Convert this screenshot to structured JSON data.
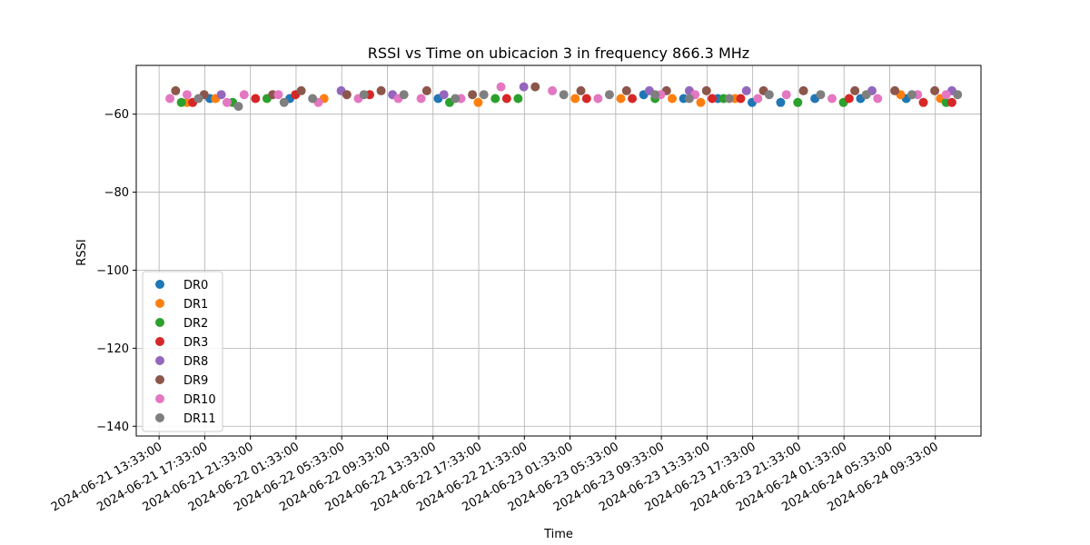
{
  "chart_data": {
    "type": "scatter",
    "title": "RSSI vs Time on ubicacion 3 in frequency 866.3 MHz",
    "xlabel": "Time",
    "ylabel": "RSSI",
    "grid": true,
    "legend_position": "lower-left",
    "x_range": [
      "2024-06-21 11:33:00",
      "2024-06-24 13:33:00"
    ],
    "ylim": [
      -142.5,
      -47.5
    ],
    "x_ticks": [
      "2024-06-21 13:33:00",
      "2024-06-21 17:33:00",
      "2024-06-21 21:33:00",
      "2024-06-22 01:33:00",
      "2024-06-22 05:33:00",
      "2024-06-22 09:33:00",
      "2024-06-22 13:33:00",
      "2024-06-22 17:33:00",
      "2024-06-22 21:33:00",
      "2024-06-23 01:33:00",
      "2024-06-23 05:33:00",
      "2024-06-23 09:33:00",
      "2024-06-23 13:33:00",
      "2024-06-23 17:33:00",
      "2024-06-23 21:33:00",
      "2024-06-24 01:33:00",
      "2024-06-24 05:33:00",
      "2024-06-24 09:33:00"
    ],
    "y_ticks": [
      -60,
      -80,
      -100,
      -120,
      -140
    ],
    "y_tick_labels": [
      "−60",
      "−80",
      "−100",
      "−120",
      "−140"
    ],
    "series": [
      {
        "name": "DR0",
        "color": "#1f77b4",
        "points": [
          [
            "2024-06-22 14:00",
            -56
          ],
          [
            "2024-06-23 11:30",
            -56
          ],
          [
            "2024-06-23 14:30",
            -56
          ],
          [
            "2024-06-23 17:30",
            -57
          ],
          [
            "2024-06-23 20:00",
            -57
          ],
          [
            "2024-06-23 23:00",
            -56
          ],
          [
            "2024-06-24 03:00",
            -56
          ],
          [
            "2024-06-24 07:00",
            -56
          ],
          [
            "2024-06-22 01:00",
            -56
          ],
          [
            "2024-06-21 18:00",
            -56
          ],
          [
            "2024-06-23 08:00",
            -55
          ]
        ]
      },
      {
        "name": "DR1",
        "color": "#ff7f0e",
        "points": [
          [
            "2024-06-21 16:00",
            -57
          ],
          [
            "2024-06-21 18:30",
            -56
          ],
          [
            "2024-06-22 04:00",
            -56
          ],
          [
            "2024-06-22 17:30",
            -57
          ],
          [
            "2024-06-23 02:00",
            -56
          ],
          [
            "2024-06-23 06:00",
            -56
          ],
          [
            "2024-06-23 10:30",
            -56
          ],
          [
            "2024-06-23 13:00",
            -57
          ],
          [
            "2024-06-23 16:00",
            -56
          ],
          [
            "2024-06-24 06:30",
            -55
          ],
          [
            "2024-06-24 10:00",
            -56
          ]
        ]
      },
      {
        "name": "DR2",
        "color": "#2ca02c",
        "points": [
          [
            "2024-06-21 15:30",
            -57
          ],
          [
            "2024-06-21 20:00",
            -57
          ],
          [
            "2024-06-22 19:00",
            -56
          ],
          [
            "2024-06-22 21:00",
            -56
          ],
          [
            "2024-06-23 09:00",
            -56
          ],
          [
            "2024-06-23 15:00",
            -56
          ],
          [
            "2024-06-23 21:30",
            -57
          ],
          [
            "2024-06-24 01:30",
            -57
          ],
          [
            "2024-06-24 10:30",
            -57
          ],
          [
            "2024-06-22 15:00",
            -57
          ],
          [
            "2024-06-21 23:00",
            -56
          ]
        ]
      },
      {
        "name": "DR3",
        "color": "#d62728",
        "points": [
          [
            "2024-06-21 16:30",
            -57
          ],
          [
            "2024-06-21 22:00",
            -56
          ],
          [
            "2024-06-22 01:30",
            -55
          ],
          [
            "2024-06-22 20:00",
            -56
          ],
          [
            "2024-06-23 03:00",
            -56
          ],
          [
            "2024-06-23 07:00",
            -56
          ],
          [
            "2024-06-23 14:00",
            -56
          ],
          [
            "2024-06-24 02:00",
            -56
          ],
          [
            "2024-06-24 08:30",
            -57
          ],
          [
            "2024-06-24 11:00",
            -57
          ],
          [
            "2024-06-23 16:30",
            -56
          ],
          [
            "2024-06-22 08:00",
            -55
          ]
        ]
      },
      {
        "name": "DR8",
        "color": "#9467bd",
        "points": [
          [
            "2024-06-21 19:00",
            -55
          ],
          [
            "2024-06-22 05:30",
            -54
          ],
          [
            "2024-06-22 10:00",
            -55
          ],
          [
            "2024-06-22 14:30",
            -55
          ],
          [
            "2024-06-22 21:30",
            -53
          ],
          [
            "2024-06-23 08:30",
            -54
          ],
          [
            "2024-06-23 12:00",
            -54
          ],
          [
            "2024-06-23 17:00",
            -54
          ],
          [
            "2024-06-24 04:00",
            -54
          ],
          [
            "2024-06-24 11:00",
            -54
          ]
        ]
      },
      {
        "name": "DR9",
        "color": "#8c564b",
        "points": [
          [
            "2024-06-21 15:00",
            -54
          ],
          [
            "2024-06-21 17:30",
            -55
          ],
          [
            "2024-06-21 23:30",
            -55
          ],
          [
            "2024-06-22 02:00",
            -54
          ],
          [
            "2024-06-22 06:00",
            -55
          ],
          [
            "2024-06-22 09:00",
            -54
          ],
          [
            "2024-06-22 13:00",
            -54
          ],
          [
            "2024-06-22 17:00",
            -55
          ],
          [
            "2024-06-22 22:30",
            -53
          ],
          [
            "2024-06-23 02:30",
            -54
          ],
          [
            "2024-06-23 06:30",
            -54
          ],
          [
            "2024-06-23 10:00",
            -54
          ],
          [
            "2024-06-23 13:30",
            -54
          ],
          [
            "2024-06-23 18:30",
            -54
          ],
          [
            "2024-06-23 22:00",
            -54
          ],
          [
            "2024-06-24 02:30",
            -54
          ],
          [
            "2024-06-24 06:00",
            -54
          ],
          [
            "2024-06-24 09:30",
            -54
          ]
        ]
      },
      {
        "name": "DR10",
        "color": "#e377c2",
        "points": [
          [
            "2024-06-21 14:30",
            -56
          ],
          [
            "2024-06-21 16:00",
            -55
          ],
          [
            "2024-06-21 19:30",
            -57
          ],
          [
            "2024-06-21 21:00",
            -55
          ],
          [
            "2024-06-22 00:00",
            -55
          ],
          [
            "2024-06-22 03:30",
            -57
          ],
          [
            "2024-06-22 07:00",
            -56
          ],
          [
            "2024-06-22 10:30",
            -56
          ],
          [
            "2024-06-22 12:30",
            -56
          ],
          [
            "2024-06-22 16:00",
            -56
          ],
          [
            "2024-06-22 19:30",
            -53
          ],
          [
            "2024-06-23 00:00",
            -54
          ],
          [
            "2024-06-23 04:00",
            -56
          ],
          [
            "2024-06-23 09:30",
            -55
          ],
          [
            "2024-06-23 12:30",
            -55
          ],
          [
            "2024-06-23 18:00",
            -56
          ],
          [
            "2024-06-23 20:30",
            -55
          ],
          [
            "2024-06-24 00:30",
            -56
          ],
          [
            "2024-06-24 04:30",
            -56
          ],
          [
            "2024-06-24 08:00",
            -55
          ],
          [
            "2024-06-24 10:30",
            -55
          ]
        ]
      },
      {
        "name": "DR11",
        "color": "#7f7f7f",
        "points": [
          [
            "2024-06-21 17:00",
            -56
          ],
          [
            "2024-06-21 20:30",
            -58
          ],
          [
            "2024-06-22 00:30",
            -57
          ],
          [
            "2024-06-22 03:00",
            -56
          ],
          [
            "2024-06-22 07:30",
            -55
          ],
          [
            "2024-06-22 11:00",
            -55
          ],
          [
            "2024-06-22 15:30",
            -56
          ],
          [
            "2024-06-22 18:00",
            -55
          ],
          [
            "2024-06-23 01:00",
            -55
          ],
          [
            "2024-06-23 05:00",
            -55
          ],
          [
            "2024-06-23 09:00",
            -55
          ],
          [
            "2024-06-23 12:00",
            -56
          ],
          [
            "2024-06-23 15:30",
            -56
          ],
          [
            "2024-06-23 19:00",
            -55
          ],
          [
            "2024-06-23 23:30",
            -55
          ],
          [
            "2024-06-24 03:30",
            -55
          ],
          [
            "2024-06-24 07:30",
            -55
          ],
          [
            "2024-06-24 11:30",
            -55
          ]
        ]
      }
    ]
  }
}
